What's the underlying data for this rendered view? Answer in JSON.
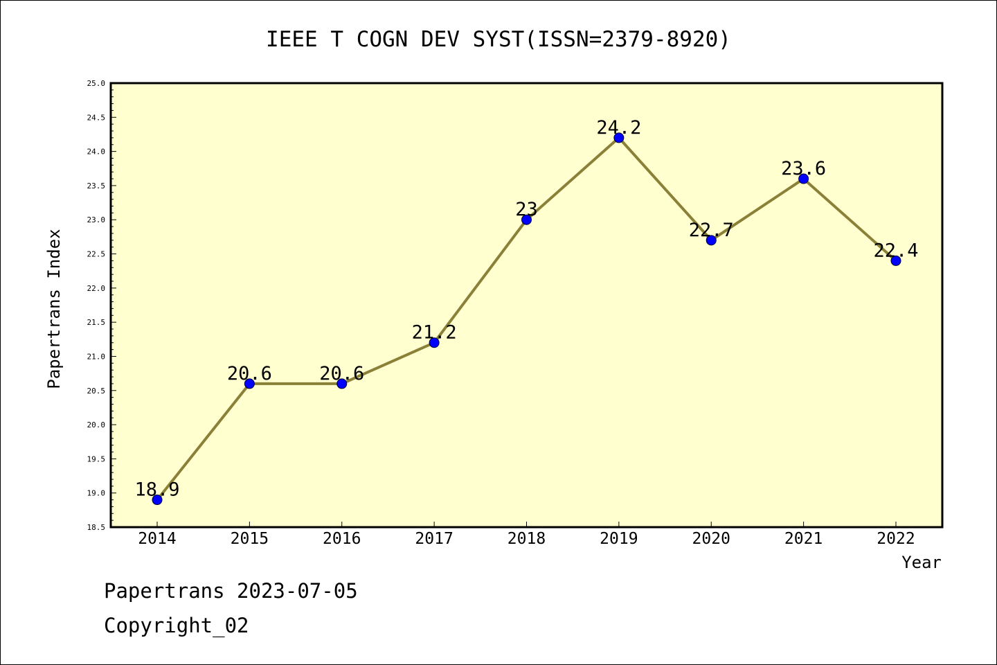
{
  "chart_data": {
    "type": "line",
    "title": "IEEE T COGN DEV SYST(ISSN=2379-8920)",
    "xlabel": "Year",
    "ylabel": "Papertrans Index",
    "categories": [
      "2014",
      "2015",
      "2016",
      "2017",
      "2018",
      "2019",
      "2020",
      "2021",
      "2022"
    ],
    "series": [
      {
        "values": [
          18.9,
          20.6,
          20.6,
          21.2,
          23,
          24.2,
          22.7,
          23.6,
          22.4
        ],
        "labels": [
          "18.9",
          "20.6",
          "20.6",
          "21.2",
          "23",
          "24.2",
          "22.7",
          "23.6",
          "22.4"
        ]
      }
    ],
    "ylim": [
      18.5,
      25.0
    ],
    "yticks": [
      "18.5",
      "19.0",
      "19.5",
      "20.0",
      "20.5",
      "21.0",
      "21.5",
      "22.0",
      "22.5",
      "23.0",
      "23.5",
      "24.0",
      "24.5",
      "25.0"
    ],
    "grid": false,
    "colors": {
      "plot_background": "#ffffd0",
      "line": "#8b8038",
      "marker": "#0000ff"
    }
  },
  "footer": {
    "watermark": "Papertrans 2023-07-05",
    "copyright": "Copyright_02"
  }
}
